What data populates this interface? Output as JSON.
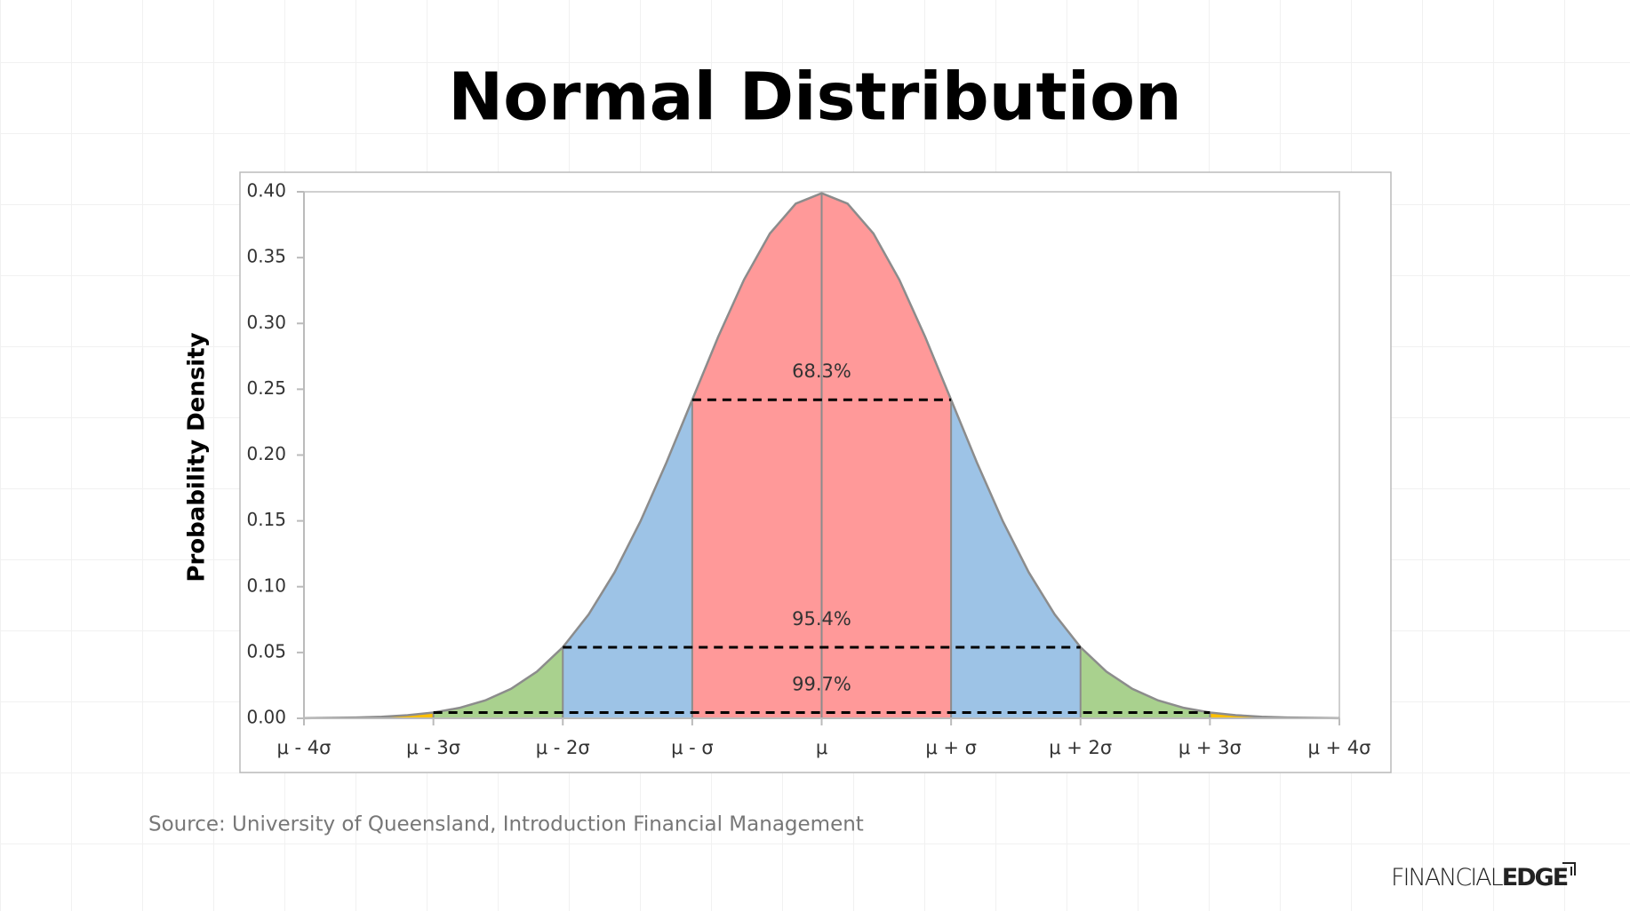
{
  "chart_data": {
    "type": "area",
    "title": "Normal Distribution",
    "ylabel": "Probability Density",
    "source": "Source: University of Queensland, Introduction Financial Management",
    "logo": {
      "light": "FINANCIAL",
      "bold": "EDGE"
    },
    "x": [
      -4,
      -3.8,
      -3.6,
      -3.4,
      -3.2,
      -3,
      -2.8,
      -2.6,
      -2.4,
      -2.2,
      -2,
      -1.8,
      -1.6,
      -1.4,
      -1.2,
      -1,
      -0.8,
      -0.6,
      -0.4,
      -0.2,
      0,
      0.2,
      0.4,
      0.6,
      0.8,
      1,
      1.2,
      1.4,
      1.6,
      1.8,
      2,
      2.2,
      2.4,
      2.6,
      2.8,
      3,
      3.2,
      3.4,
      3.6,
      3.8,
      4
    ],
    "values": [
      0.0001,
      0.0003,
      0.0006,
      0.0012,
      0.0024,
      0.0044,
      0.0079,
      0.0136,
      0.0224,
      0.0355,
      0.054,
      0.079,
      0.1109,
      0.1497,
      0.1942,
      0.242,
      0.2897,
      0.3332,
      0.3683,
      0.391,
      0.3989,
      0.391,
      0.3683,
      0.3332,
      0.2897,
      0.242,
      0.1942,
      0.1497,
      0.1109,
      0.079,
      0.054,
      0.0355,
      0.0224,
      0.0136,
      0.0079,
      0.0044,
      0.0024,
      0.0012,
      0.0006,
      0.0003,
      0.0001
    ],
    "line_color": "#8c8c8c",
    "regions": [
      {
        "from": -4,
        "to": -3,
        "color": "#ffc000"
      },
      {
        "from": -3,
        "to": -2,
        "color": "#a9d18e"
      },
      {
        "from": -2,
        "to": -1,
        "color": "#9dc3e6"
      },
      {
        "from": -1,
        "to": 1,
        "color": "#ff9999"
      },
      {
        "from": 1,
        "to": 2,
        "color": "#9dc3e6"
      },
      {
        "from": 2,
        "to": 3,
        "color": "#a9d18e"
      },
      {
        "from": 3,
        "to": 4,
        "color": "#ffc000"
      }
    ],
    "intervals": [
      {
        "label": "68.3%",
        "from": -1,
        "to": 1,
        "y": 0.242
      },
      {
        "label": "95.4%",
        "from": -2,
        "to": 2,
        "y": 0.054
      },
      {
        "label": "99.7%",
        "from": -3,
        "to": 3,
        "y": 0.0044
      }
    ],
    "xlim": [
      -4,
      4
    ],
    "xticks": [
      {
        "value": -4,
        "label": "μ - 4σ"
      },
      {
        "value": -3,
        "label": "μ - 3σ"
      },
      {
        "value": -2,
        "label": "μ - 2σ"
      },
      {
        "value": -1,
        "label": "μ - σ"
      },
      {
        "value": 0,
        "label": "μ"
      },
      {
        "value": 1,
        "label": "μ + σ"
      },
      {
        "value": 2,
        "label": "μ + 2σ"
      },
      {
        "value": 3,
        "label": "μ + 3σ"
      },
      {
        "value": 4,
        "label": "μ + 4σ"
      }
    ],
    "ylim": [
      0,
      0.4
    ],
    "yticks": [
      {
        "value": 0,
        "label": "0.00"
      },
      {
        "value": 0.05,
        "label": "0.05"
      },
      {
        "value": 0.1,
        "label": "0.10"
      },
      {
        "value": 0.15,
        "label": "0.15"
      },
      {
        "value": 0.2,
        "label": "0.20"
      },
      {
        "value": 0.25,
        "label": "0.25"
      },
      {
        "value": 0.3,
        "label": "0.30"
      },
      {
        "value": 0.35,
        "label": "0.35"
      },
      {
        "value": 0.4,
        "label": "0.40"
      }
    ]
  }
}
